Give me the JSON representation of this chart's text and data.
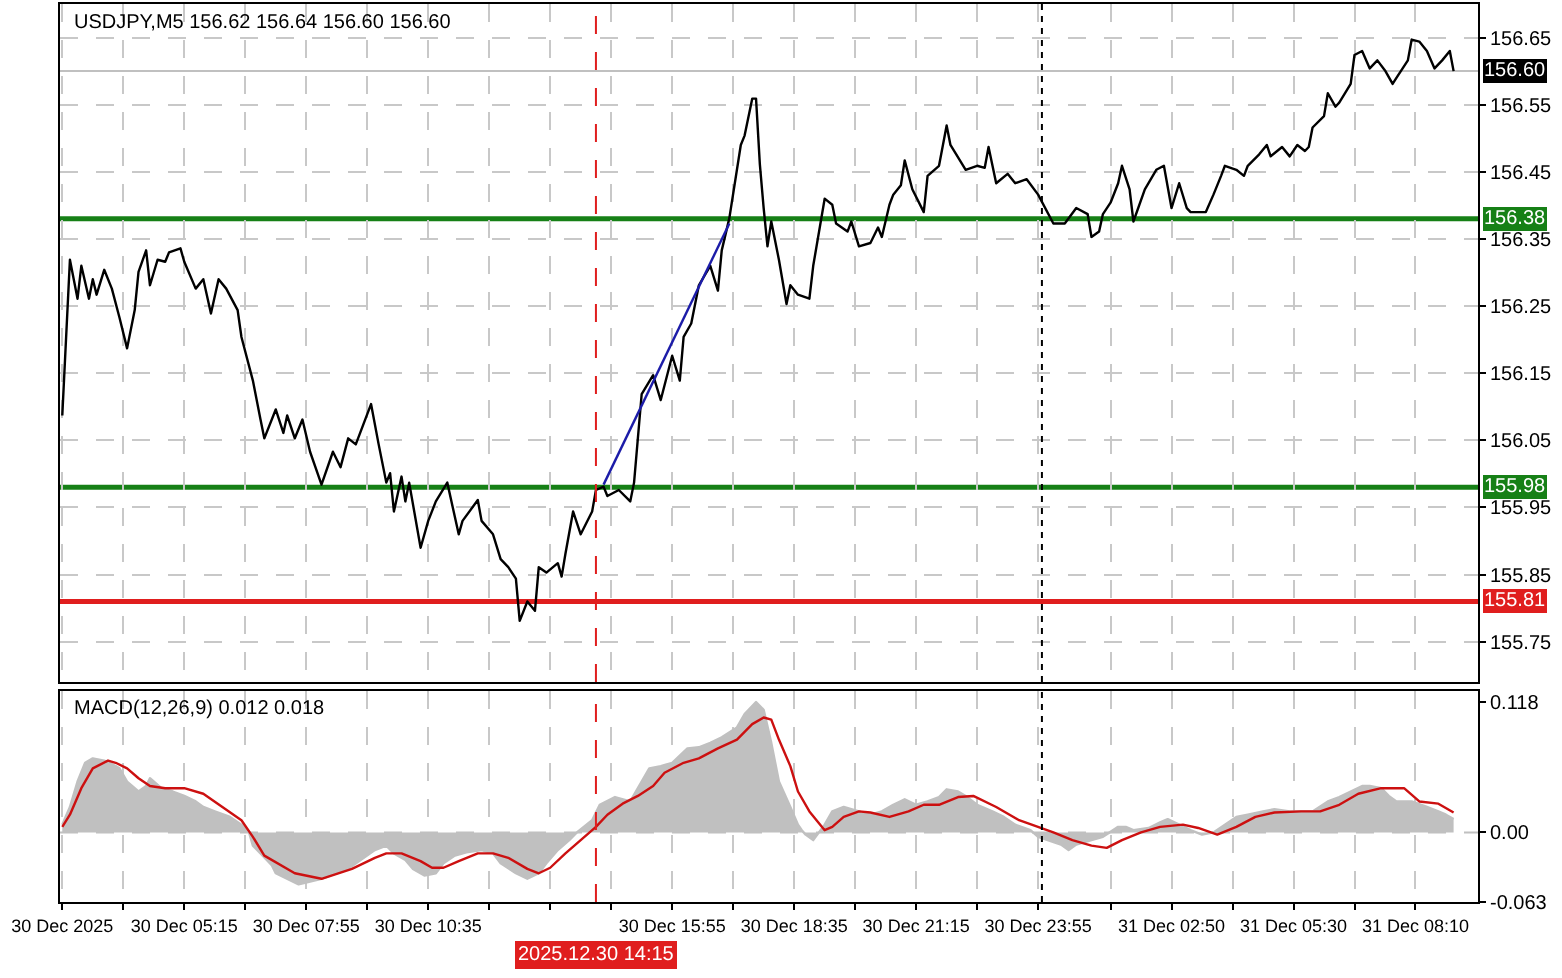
{
  "chart_data": [
    {
      "type": "line",
      "title": "USDJPY,M5 156.62 156.64 156.60 156.60",
      "series": [
        {
          "color": "#000000",
          "x": [
            "2025-12-30T02:35",
            "2025-12-30T02:45",
            "2025-12-30T02:55",
            "2025-12-30T03:00",
            "2025-12-30T03:10",
            "2025-12-30T03:15",
            "2025-12-30T03:20",
            "2025-12-30T03:30",
            "2025-12-30T03:40",
            "2025-12-30T03:50",
            "2025-12-30T04:00",
            "2025-12-30T04:10",
            "2025-12-30T04:15",
            "2025-12-30T04:25",
            "2025-12-30T04:30",
            "2025-12-30T04:40",
            "2025-12-30T04:50",
            "2025-12-30T04:55",
            "2025-12-30T05:10",
            "2025-12-30T05:15",
            "2025-12-30T05:30",
            "2025-12-30T05:40",
            "2025-12-30T05:50",
            "2025-12-30T06:00",
            "2025-12-30T06:10",
            "2025-12-30T06:25",
            "2025-12-30T06:30",
            "2025-12-30T06:45",
            "2025-12-30T06:55",
            "2025-12-30T07:00",
            "2025-12-30T07:15",
            "2025-12-30T07:25",
            "2025-12-30T07:30",
            "2025-12-30T07:40",
            "2025-12-30T07:50",
            "2025-12-30T08:00",
            "2025-12-30T08:15",
            "2025-12-30T08:30",
            "2025-12-30T08:40",
            "2025-12-30T08:50",
            "2025-12-30T09:00",
            "2025-12-30T09:20",
            "2025-12-30T09:30",
            "2025-12-30T09:40",
            "2025-12-30T09:45",
            "2025-12-30T09:50",
            "2025-12-30T10:00",
            "2025-12-30T10:05",
            "2025-12-30T10:10",
            "2025-12-30T10:25",
            "2025-12-30T10:35",
            "2025-12-30T10:45",
            "2025-12-30T11:00",
            "2025-12-30T11:15",
            "2025-12-30T11:20",
            "2025-12-30T11:40",
            "2025-12-30T11:45",
            "2025-12-30T12:00",
            "2025-12-30T12:10",
            "2025-12-30T12:20",
            "2025-12-30T12:30",
            "2025-12-30T12:35",
            "2025-12-30T12:45",
            "2025-12-30T12:55",
            "2025-12-30T13:00",
            "2025-12-30T13:10",
            "2025-12-30T13:25",
            "2025-12-30T13:30",
            "2025-12-30T13:35",
            "2025-12-30T13:45",
            "2025-12-30T13:55",
            "2025-12-30T14:10",
            "2025-12-30T14:15",
            "2025-12-30T14:25",
            "2025-12-30T14:30",
            "2025-12-30T14:45",
            "2025-12-30T15:00",
            "2025-12-30T15:05",
            "2025-12-30T15:15",
            "2025-12-30T15:30",
            "2025-12-30T15:40",
            "2025-12-30T15:55",
            "2025-12-30T16:05",
            "2025-12-30T16:10",
            "2025-12-30T16:20",
            "2025-12-30T16:30",
            "2025-12-30T16:45",
            "2025-12-30T16:55",
            "2025-12-30T17:00",
            "2025-12-30T17:10",
            "2025-12-30T17:25",
            "2025-12-30T17:30",
            "2025-12-30T17:40",
            "2025-12-30T17:45",
            "2025-12-30T17:50",
            "2025-12-30T17:55",
            "2025-12-30T18:00",
            "2025-12-30T18:05",
            "2025-12-30T18:15",
            "2025-12-30T18:25",
            "2025-12-30T18:30",
            "2025-12-30T18:40",
            "2025-12-30T18:55",
            "2025-12-30T19:00",
            "2025-12-30T19:15",
            "2025-12-30T19:25",
            "2025-12-30T19:30",
            "2025-12-30T19:45",
            "2025-12-30T19:50",
            "2025-12-30T20:00",
            "2025-12-30T20:15",
            "2025-12-30T20:25",
            "2025-12-30T20:30",
            "2025-12-30T20:40",
            "2025-12-30T20:45",
            "2025-12-30T20:55",
            "2025-12-30T21:00",
            "2025-12-30T21:10",
            "2025-12-30T21:25",
            "2025-12-30T21:30",
            "2025-12-30T21:45",
            "2025-12-30T21:55",
            "2025-12-30T22:00",
            "2025-12-30T22:20",
            "2025-12-30T22:35",
            "2025-12-30T22:45",
            "2025-12-30T22:50",
            "2025-12-30T23:00",
            "2025-12-30T23:15",
            "2025-12-30T23:25",
            "2025-12-30T23:40",
            "2025-12-30T23:55",
            "2025-12-31T00:15",
            "2025-12-31T00:30",
            "2025-12-31T00:45",
            "2025-12-31T01:00",
            "2025-12-31T01:05",
            "2025-12-31T01:15",
            "2025-12-31T01:20",
            "2025-12-31T01:30",
            "2025-12-31T01:40",
            "2025-12-31T01:45",
            "2025-12-31T01:55",
            "2025-12-31T02:00",
            "2025-12-31T02:15",
            "2025-12-31T02:30",
            "2025-12-31T02:40",
            "2025-12-31T02:50",
            "2025-12-31T03:00",
            "2025-12-31T03:10",
            "2025-12-31T03:15",
            "2025-12-31T03:35",
            "2025-12-31T03:45",
            "2025-12-31T03:55",
            "2025-12-31T04:00",
            "2025-12-31T04:15",
            "2025-12-31T04:25",
            "2025-12-31T04:30",
            "2025-12-31T04:45",
            "2025-12-31T04:55",
            "2025-12-31T05:00",
            "2025-12-31T05:15",
            "2025-12-31T05:25",
            "2025-12-31T05:35",
            "2025-12-31T05:45",
            "2025-12-31T05:50",
            "2025-12-31T05:55",
            "2025-12-31T06:10",
            "2025-12-31T06:15",
            "2025-12-31T06:25",
            "2025-12-31T06:30",
            "2025-12-31T06:45",
            "2025-12-31T06:50",
            "2025-12-31T07:00",
            "2025-12-31T07:10",
            "2025-12-31T07:20",
            "2025-12-31T07:30",
            "2025-12-31T07:40",
            "2025-12-31T07:45",
            "2025-12-31T08:00",
            "2025-12-31T08:05",
            "2025-12-31T08:15",
            "2025-12-31T08:25",
            "2025-12-31T08:35",
            "2025-12-31T08:45",
            "2025-12-31T08:55",
            "2025-12-31T09:00"
          ],
          "values": [
            156.087,
            156.319,
            156.261,
            156.31,
            156.261,
            156.29,
            156.267,
            156.304,
            156.276,
            156.233,
            156.187,
            156.244,
            156.301,
            156.333,
            156.281,
            156.319,
            156.316,
            156.33,
            156.336,
            156.316,
            156.276,
            156.29,
            156.239,
            156.29,
            156.276,
            156.244,
            156.204,
            156.139,
            156.081,
            156.053,
            156.096,
            156.061,
            156.087,
            156.053,
            156.081,
            156.033,
            155.984,
            156.033,
            156.01,
            156.053,
            156.044,
            156.104,
            156.044,
            155.987,
            156.001,
            155.944,
            155.996,
            155.959,
            155.987,
            155.89,
            155.93,
            155.959,
            155.987,
            155.91,
            155.93,
            155.961,
            155.93,
            155.91,
            155.873,
            155.861,
            155.844,
            155.781,
            155.81,
            155.796,
            155.861,
            155.853,
            155.867,
            155.847,
            155.881,
            155.944,
            155.91,
            155.944,
            155.976,
            155.981,
            155.967,
            155.976,
            155.959,
            155.987,
            156.119,
            156.147,
            156.11,
            156.176,
            156.139,
            156.204,
            156.224,
            156.281,
            156.31,
            156.273,
            156.333,
            156.381,
            156.49,
            156.504,
            156.559,
            156.559,
            156.461,
            156.396,
            156.339,
            156.376,
            156.319,
            156.253,
            156.281,
            156.267,
            156.261,
            156.31,
            156.41,
            156.401,
            156.373,
            156.361,
            156.376,
            156.339,
            156.344,
            156.367,
            156.353,
            156.401,
            156.416,
            156.43,
            156.467,
            156.424,
            156.39,
            156.444,
            156.459,
            156.519,
            156.49,
            156.453,
            156.459,
            156.456,
            156.487,
            156.433,
            156.447,
            156.433,
            156.439,
            156.416,
            156.373,
            156.373,
            156.396,
            156.387,
            156.353,
            156.361,
            156.387,
            156.404,
            156.433,
            156.459,
            156.424,
            156.376,
            156.424,
            156.453,
            156.459,
            156.396,
            156.433,
            156.396,
            156.39,
            156.39,
            156.416,
            156.444,
            156.459,
            156.453,
            156.444,
            156.459,
            156.476,
            156.49,
            156.473,
            156.487,
            156.473,
            156.49,
            156.481,
            156.487,
            156.516,
            156.533,
            156.567,
            156.547,
            156.553,
            156.581,
            156.624,
            156.63,
            156.604,
            156.616,
            156.601,
            156.581,
            156.59,
            156.616,
            156.647,
            156.644,
            156.63,
            156.604,
            156.616,
            156.63,
            156.6
          ]
        },
        {
          "type": "line",
          "color": "#1c1ca8",
          "x": [
            "2025-12-30T14:25",
            "2025-12-30T17:10"
          ],
          "values": [
            155.984,
            156.373
          ]
        }
      ],
      "xlim": [
        "2025-12-30T02:32",
        "2025-12-31T09:32"
      ],
      "ylim": [
        155.69,
        156.7
      ],
      "xticks": [
        {
          "value": "2025-12-30T02:35",
          "label": null
        },
        {
          "value": "2025-12-30T03:55",
          "label": null
        },
        {
          "value": "2025-12-30T05:15",
          "label": null
        },
        {
          "value": "2025-12-30T06:35",
          "label": null
        },
        {
          "value": "2025-12-30T07:55",
          "label": null
        },
        {
          "value": "2025-12-30T09:15",
          "label": null
        },
        {
          "value": "2025-12-30T10:35",
          "label": null
        },
        {
          "value": "2025-12-30T11:55",
          "label": null
        },
        {
          "value": "2025-12-30T13:15",
          "label": null
        },
        {
          "value": "2025-12-30T14:35",
          "label": null
        },
        {
          "value": "2025-12-30T15:55",
          "label": null
        },
        {
          "value": "2025-12-30T17:15",
          "label": null
        },
        {
          "value": "2025-12-30T18:35",
          "label": null
        },
        {
          "value": "2025-12-30T19:55",
          "label": null
        },
        {
          "value": "2025-12-30T21:15",
          "label": null
        },
        {
          "value": "2025-12-30T22:35",
          "label": null
        },
        {
          "value": "2025-12-30T23:55",
          "label": null
        },
        {
          "value": "2025-12-31T01:30",
          "label": null
        },
        {
          "value": "2025-12-31T02:50",
          "label": null
        },
        {
          "value": "2025-12-31T04:10",
          "label": null
        },
        {
          "value": "2025-12-31T05:30",
          "label": null
        },
        {
          "value": "2025-12-31T06:50",
          "label": null
        },
        {
          "value": "2025-12-31T08:10",
          "label": null
        }
      ],
      "yticks": [
        156.65,
        156.55,
        156.45,
        156.35,
        156.25,
        156.15,
        156.05,
        155.95,
        155.85,
        155.75
      ],
      "grid": true,
      "tick_labels": "y",
      "ref_lines": [
        {
          "axis": "y",
          "value": 156.38,
          "label": "156.38",
          "color": "#168016"
        },
        {
          "axis": "y",
          "value": 155.98,
          "label": "155.98",
          "color": "#168016"
        },
        {
          "axis": "y",
          "value": 155.81,
          "label": "155.81",
          "color": "#e01e1e"
        },
        {
          "axis": "y",
          "value": 156.6,
          "color": "#c0c0c0"
        },
        {
          "axis": "x",
          "value": "2025-12-30T14:15",
          "color": "#e01e1e",
          "line_style": "dashed"
        },
        {
          "axis": "x",
          "value": "2025-12-31T00:00",
          "color": "#000000",
          "line_style": "dotted"
        }
      ],
      "annotations": [
        {
          "text": "156.60",
          "y": 156.6
        }
      ]
    },
    {
      "type": "area",
      "title": "MACD(12,26,9) 0.012 0.018",
      "series": [
        {
          "color": "#c0c0c0",
          "x": [
            "2025-12-30T02:35",
            "2025-12-30T02:45",
            "2025-12-30T02:55",
            "2025-12-30T03:05",
            "2025-12-30T03:15",
            "2025-12-30T03:30",
            "2025-12-30T03:45",
            "2025-12-30T03:50",
            "2025-12-30T04:00",
            "2025-12-30T04:15",
            "2025-12-30T04:25",
            "2025-12-30T04:30",
            "2025-12-30T04:45",
            "2025-12-30T05:00",
            "2025-12-30T05:15",
            "2025-12-30T05:30",
            "2025-12-30T05:40",
            "2025-12-30T05:55",
            "2025-12-30T06:15",
            "2025-12-30T06:30",
            "2025-12-30T06:40",
            "2025-12-30T06:45",
            "2025-12-30T06:55",
            "2025-12-30T07:10",
            "2025-12-30T07:15",
            "2025-12-30T07:45",
            "2025-12-30T08:15",
            "2025-12-30T08:50",
            "2025-12-30T09:25",
            "2025-12-30T09:40",
            "2025-12-30T09:50",
            "2025-12-30T10:05",
            "2025-12-30T10:15",
            "2025-12-30T10:30",
            "2025-12-30T10:45",
            "2025-12-30T10:55",
            "2025-12-30T11:10",
            "2025-12-30T11:25",
            "2025-12-30T11:45",
            "2025-12-30T12:00",
            "2025-12-30T12:10",
            "2025-12-30T12:30",
            "2025-12-30T12:45",
            "2025-12-30T13:00",
            "2025-12-30T13:10",
            "2025-12-30T13:25",
            "2025-12-30T13:40",
            "2025-12-30T13:50",
            "2025-12-30T14:10",
            "2025-12-30T14:20",
            "2025-12-30T14:40",
            "2025-12-30T15:00",
            "2025-12-30T15:10",
            "2025-12-30T15:25",
            "2025-12-30T15:40",
            "2025-12-30T15:55",
            "2025-12-30T16:15",
            "2025-12-30T16:30",
            "2025-12-30T16:45",
            "2025-12-30T17:00",
            "2025-12-30T17:20",
            "2025-12-30T17:30",
            "2025-12-30T17:45",
            "2025-12-30T17:55",
            "2025-12-30T18:05",
            "2025-12-30T18:15",
            "2025-12-30T18:30",
            "2025-12-30T18:40",
            "2025-12-30T18:45",
            "2025-12-30T18:50",
            "2025-12-30T19:00",
            "2025-12-30T19:15",
            "2025-12-30T19:25",
            "2025-12-30T19:40",
            "2025-12-30T20:00",
            "2025-12-30T20:15",
            "2025-12-30T20:30",
            "2025-12-30T20:45",
            "2025-12-30T21:00",
            "2025-12-30T21:15",
            "2025-12-30T21:30",
            "2025-12-30T21:45",
            "2025-12-30T21:55",
            "2025-12-30T22:10",
            "2025-12-30T22:20",
            "2025-12-30T22:35",
            "2025-12-30T22:55",
            "2025-12-30T23:10",
            "2025-12-30T23:25",
            "2025-12-30T23:45",
            "2025-12-30T23:55",
            "2025-12-31T00:25",
            "2025-12-31T00:35",
            "2025-12-31T00:45",
            "2025-12-31T01:05",
            "2025-12-31T01:20",
            "2025-12-31T01:40",
            "2025-12-31T01:50",
            "2025-12-31T02:00",
            "2025-12-31T02:20",
            "2025-12-31T02:35",
            "2025-12-31T02:45",
            "2025-12-31T03:00",
            "2025-12-31T03:15",
            "2025-12-31T03:30",
            "2025-12-31T03:45",
            "2025-12-31T04:00",
            "2025-12-31T04:15",
            "2025-12-31T04:30",
            "2025-12-31T04:50",
            "2025-12-31T05:05",
            "2025-12-31T05:25",
            "2025-12-31T05:40",
            "2025-12-31T05:55",
            "2025-12-31T06:15",
            "2025-12-31T06:30",
            "2025-12-31T06:45",
            "2025-12-31T07:00",
            "2025-12-31T07:10",
            "2025-12-31T07:25",
            "2025-12-31T07:35",
            "2025-12-31T07:45",
            "2025-12-31T08:05",
            "2025-12-31T08:25",
            "2025-12-31T08:40",
            "2025-12-31T08:50",
            "2025-12-31T09:00"
          ],
          "values": [
            0.007,
            0.023,
            0.046,
            0.063,
            0.067,
            0.065,
            0.06,
            0.058,
            0.046,
            0.037,
            0.042,
            0.049,
            0.04,
            0.037,
            0.033,
            0.028,
            0.023,
            0.019,
            0.014,
            0.007,
            0,
            -0.012,
            -0.019,
            -0.03,
            -0.037,
            -0.047,
            -0.042,
            -0.033,
            -0.016,
            -0.012,
            -0.019,
            -0.025,
            -0.033,
            -0.039,
            -0.037,
            -0.028,
            -0.021,
            -0.018,
            -0.016,
            -0.019,
            -0.028,
            -0.037,
            -0.042,
            -0.037,
            -0.028,
            -0.016,
            -0.007,
            0,
            0.011,
            0.025,
            0.032,
            0.028,
            0.04,
            0.058,
            0.06,
            0.063,
            0.076,
            0.077,
            0.081,
            0.086,
            0.095,
            0.107,
            0.118,
            0.111,
            0.081,
            0.046,
            0.023,
            0.007,
            0.002,
            -0.002,
            -0.007,
            0.007,
            0.019,
            0.023,
            0.019,
            0.016,
            0.019,
            0.025,
            0.03,
            0.025,
            0.028,
            0.032,
            0.039,
            0.037,
            0.033,
            0.025,
            0.019,
            0.014,
            0.007,
            0.002,
            -0.004,
            -0.011,
            -0.016,
            -0.011,
            -0.007,
            -0.004,
            0.005,
            0.005,
            0.002,
            0.004,
            0.009,
            0.012,
            0.007,
            0.002,
            -0.002,
            0,
            0.007,
            0.014,
            0.016,
            0.019,
            0.021,
            0.019,
            0.019,
            0.019,
            0.028,
            0.032,
            0.037,
            0.042,
            0.042,
            0.04,
            0.033,
            0.028,
            0.028,
            0.023,
            0.019,
            0.016,
            0.012
          ]
        },
        {
          "type": "line",
          "color": "#cc1010",
          "x": [
            "2025-12-30T02:35",
            "2025-12-30T02:45",
            "2025-12-30T03:00",
            "2025-12-30T03:15",
            "2025-12-30T03:35",
            "2025-12-30T03:45",
            "2025-12-30T04:00",
            "2025-12-30T04:15",
            "2025-12-30T04:30",
            "2025-12-30T04:50",
            "2025-12-30T05:15",
            "2025-12-30T05:40",
            "2025-12-30T06:05",
            "2025-12-30T06:30",
            "2025-12-30T06:45",
            "2025-12-30T07:00",
            "2025-12-30T07:40",
            "2025-12-30T08:15",
            "2025-12-30T08:55",
            "2025-12-30T09:25",
            "2025-12-30T09:40",
            "2025-12-30T10:00",
            "2025-12-30T10:25",
            "2025-12-30T10:40",
            "2025-12-30T10:55",
            "2025-12-30T11:15",
            "2025-12-30T11:40",
            "2025-12-30T12:00",
            "2025-12-30T12:20",
            "2025-12-30T12:45",
            "2025-12-30T13:00",
            "2025-12-30T13:15",
            "2025-12-30T13:35",
            "2025-12-30T13:55",
            "2025-12-30T14:15",
            "2025-12-30T14:30",
            "2025-12-30T14:50",
            "2025-12-30T15:10",
            "2025-12-30T15:30",
            "2025-12-30T15:45",
            "2025-12-30T16:10",
            "2025-12-30T16:30",
            "2025-12-30T16:55",
            "2025-12-30T17:20",
            "2025-12-30T17:40",
            "2025-12-30T17:55",
            "2025-12-30T18:05",
            "2025-12-30T18:15",
            "2025-12-30T18:30",
            "2025-12-30T18:40",
            "2025-12-30T18:55",
            "2025-12-30T19:15",
            "2025-12-30T19:25",
            "2025-12-30T19:40",
            "2025-12-30T20:00",
            "2025-12-30T20:15",
            "2025-12-30T20:40",
            "2025-12-30T21:05",
            "2025-12-30T21:25",
            "2025-12-30T21:45",
            "2025-12-30T22:10",
            "2025-12-30T22:30",
            "2025-12-30T23:00",
            "2025-12-30T23:30",
            "2025-12-31T00:15",
            "2025-12-31T00:40",
            "2025-12-31T01:05",
            "2025-12-31T01:25",
            "2025-12-31T01:45",
            "2025-12-31T02:10",
            "2025-12-31T02:35",
            "2025-12-31T03:05",
            "2025-12-31T03:25",
            "2025-12-31T03:50",
            "2025-12-31T04:15",
            "2025-12-31T04:40",
            "2025-12-31T05:05",
            "2025-12-31T05:40",
            "2025-12-31T06:05",
            "2025-12-31T06:30",
            "2025-12-31T06:55",
            "2025-12-31T07:25",
            "2025-12-31T07:55",
            "2025-12-31T08:15",
            "2025-12-31T08:40",
            "2025-12-31T09:00"
          ],
          "values": [
            0.005,
            0.016,
            0.04,
            0.058,
            0.065,
            0.063,
            0.058,
            0.049,
            0.042,
            0.04,
            0.04,
            0.035,
            0.023,
            0.011,
            -0.004,
            -0.021,
            -0.037,
            -0.042,
            -0.033,
            -0.023,
            -0.019,
            -0.019,
            -0.026,
            -0.032,
            -0.032,
            -0.026,
            -0.019,
            -0.019,
            -0.023,
            -0.033,
            -0.037,
            -0.032,
            -0.019,
            -0.007,
            0.005,
            0.016,
            0.026,
            0.033,
            0.042,
            0.054,
            0.063,
            0.067,
            0.076,
            0.084,
            0.098,
            0.104,
            0.102,
            0.084,
            0.06,
            0.037,
            0.019,
            0.002,
            0.005,
            0.014,
            0.019,
            0.018,
            0.014,
            0.019,
            0.025,
            0.025,
            0.032,
            0.033,
            0.023,
            0.011,
            0,
            -0.007,
            -0.012,
            -0.014,
            -0.007,
            0,
            0.005,
            0.007,
            0.004,
            -0.002,
            0.005,
            0.014,
            0.018,
            0.019,
            0.019,
            0.025,
            0.035,
            0.04,
            0.04,
            0.028,
            0.026,
            0.018
          ]
        }
      ],
      "xlim": [
        "2025-12-30T02:32",
        "2025-12-31T09:32"
      ],
      "ylim": [
        -0.063,
        0.128
      ],
      "xticks": [
        {
          "value": "2025-12-30T02:35",
          "label": "30 Dec 2025"
        },
        {
          "value": "2025-12-30T03:55",
          "label": null
        },
        {
          "value": "2025-12-30T05:15",
          "label": "30 Dec 05:15"
        },
        {
          "value": "2025-12-30T06:35",
          "label": null
        },
        {
          "value": "2025-12-30T07:55",
          "label": "30 Dec 07:55"
        },
        {
          "value": "2025-12-30T09:15",
          "label": null
        },
        {
          "value": "2025-12-30T10:35",
          "label": "30 Dec 10:35"
        },
        {
          "value": "2025-12-30T11:55",
          "label": null
        },
        {
          "value": "2025-12-30T13:15",
          "label": null
        },
        {
          "value": "2025-12-30T14:35",
          "label": null
        },
        {
          "value": "2025-12-30T15:55",
          "label": "30 Dec 15:55"
        },
        {
          "value": "2025-12-30T17:15",
          "label": null
        },
        {
          "value": "2025-12-30T18:35",
          "label": "30 Dec 18:35"
        },
        {
          "value": "2025-12-30T19:55",
          "label": null
        },
        {
          "value": "2025-12-30T21:15",
          "label": "30 Dec 21:15"
        },
        {
          "value": "2025-12-30T22:35",
          "label": null
        },
        {
          "value": "2025-12-30T23:55",
          "label": "30 Dec 23:55"
        },
        {
          "value": "2025-12-31T01:30",
          "label": null
        },
        {
          "value": "2025-12-31T02:50",
          "label": "31 Dec 02:50"
        },
        {
          "value": "2025-12-31T04:10",
          "label": null
        },
        {
          "value": "2025-12-31T05:30",
          "label": "31 Dec 05:30"
        },
        {
          "value": "2025-12-31T06:50",
          "label": null
        },
        {
          "value": "2025-12-31T08:10",
          "label": "31 Dec 08:10"
        }
      ],
      "yticks": [
        0.118,
        {
          "value": 0,
          "label": "0.00"
        },
        -0.063
      ],
      "grid": "x",
      "ref_lines": [
        {
          "axis": "y",
          "value": 0,
          "color": "#c0c0c0",
          "line_style": "dashed"
        },
        {
          "axis": "x",
          "value": "2025-12-30T14:15",
          "label": "2025.12.30 14:15",
          "color": "#e01e1e",
          "line_style": "dashed"
        },
        {
          "axis": "x",
          "value": "2025-12-31T00:00",
          "color": "#000000",
          "line_style": "dotted"
        }
      ]
    }
  ]
}
